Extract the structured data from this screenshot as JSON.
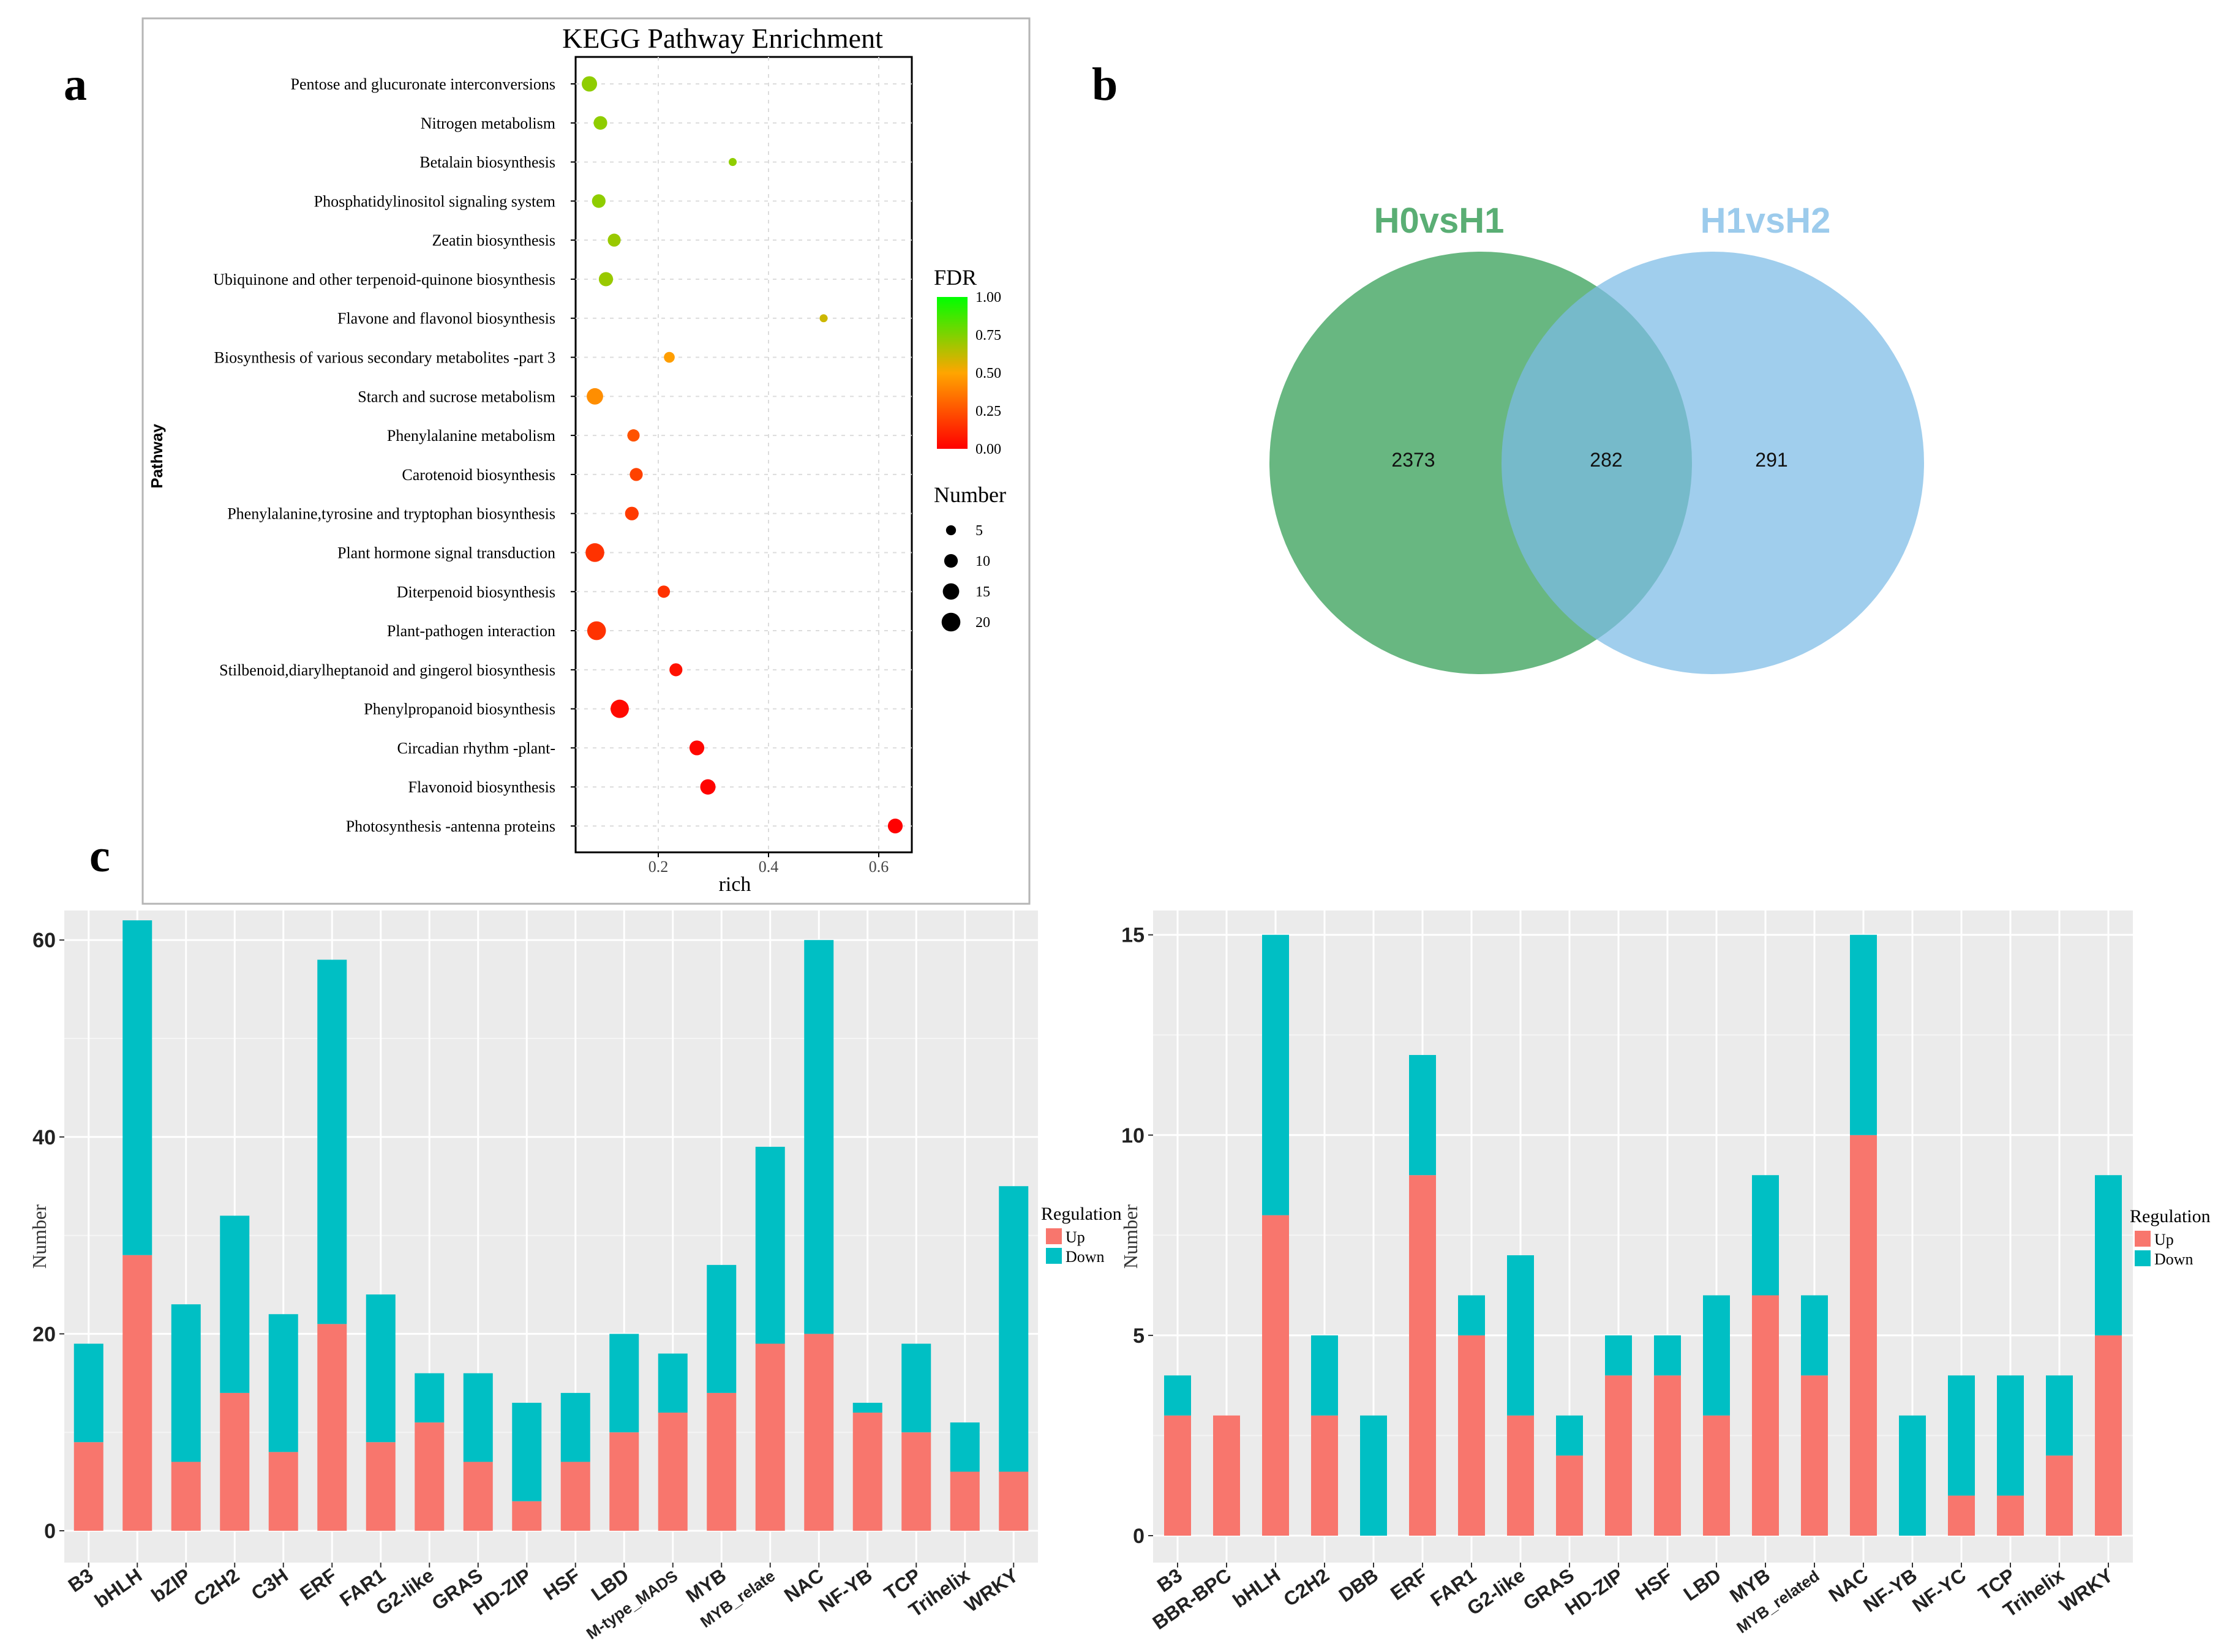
{
  "panels": {
    "a": "a",
    "b": "b",
    "c": "c"
  },
  "colors": {
    "up": "#f8766d",
    "down": "#00bfc4",
    "panel_bg": "#ebebeb",
    "venn_left": "#2e9b50",
    "venn_right": "#7bbbe6",
    "venn_left_label": "#5aae74",
    "venn_right_label": "#9ccbec"
  },
  "chart_data": [
    {
      "type": "scatter",
      "title": "KEGG Pathway Enrichment",
      "xlabel": "rich",
      "ylabel": "Pathway",
      "xlim": [
        0.05,
        0.66
      ],
      "xticks": [
        0.2,
        0.4,
        0.6
      ],
      "xtick_labels": [
        "0.2",
        "0.4",
        "0.6"
      ],
      "categories": [
        "Pentose and glucuronate interconversions",
        "Nitrogen metabolism",
        "Betalain biosynthesis",
        "Phosphatidylinositol signaling system",
        "Zeatin biosynthesis",
        "Ubiquinone and other terpenoid-quinone biosynthesis",
        "Flavone and flavonol biosynthesis",
        "Biosynthesis of various secondary metabolites -part 3",
        "Starch and sucrose metabolism",
        "Phenylalanine metabolism",
        "Carotenoid biosynthesis",
        "Phenylalanine,tyrosine and tryptophan biosynthesis",
        "Plant hormone signal transduction",
        "Diterpenoid biosynthesis",
        "Plant-pathogen interaction",
        "Stilbenoid,diarylheptanoid and gingerol biosynthesis",
        "Phenylpropanoid biosynthesis",
        "Circadian rhythm -plant-",
        "Flavonoid biosynthesis",
        "Photosynthesis -antenna proteins"
      ],
      "rich": [
        0.075,
        0.095,
        0.335,
        0.092,
        0.12,
        0.105,
        0.5,
        0.22,
        0.085,
        0.155,
        0.16,
        0.152,
        0.085,
        0.21,
        0.088,
        0.232,
        0.13,
        0.27,
        0.29,
        0.63
      ],
      "fdr": [
        0.72,
        0.72,
        0.72,
        0.72,
        0.7,
        0.7,
        0.6,
        0.48,
        0.43,
        0.25,
        0.2,
        0.18,
        0.15,
        0.15,
        0.15,
        0.05,
        0.03,
        0.02,
        0.01,
        0.0
      ],
      "number": [
        13,
        10,
        3,
        10,
        9,
        11,
        3,
        6,
        15,
        8,
        9,
        10,
        20,
        8,
        20,
        9,
        19,
        12,
        13,
        12
      ],
      "legend_fdr": {
        "title": "FDR",
        "ticks": [
          "1.00",
          "0.75",
          "0.50",
          "0.25",
          "0.00"
        ]
      },
      "legend_number": {
        "title": "Number",
        "values": [
          5,
          10,
          15,
          20
        ],
        "labels": [
          "5",
          "10",
          "15",
          "20"
        ]
      }
    },
    {
      "type": "venn",
      "sets": [
        "H0vsH1",
        "H1vsH2"
      ],
      "only_left": 2373,
      "overlap": 282,
      "only_right": 291,
      "labels": [
        "2373",
        "282",
        "291"
      ]
    },
    {
      "type": "bar",
      "stacked": true,
      "ylabel": "Number",
      "ylim": [
        0,
        63
      ],
      "yticks": [
        0,
        20,
        40,
        60
      ],
      "ytick_labels": [
        "0",
        "20",
        "40",
        "60"
      ],
      "categories": [
        "B3",
        "bHLH",
        "bZIP",
        "C2H2",
        "C3H",
        "ERF",
        "FAR1",
        "G2-like",
        "GRAS",
        "HD-ZIP",
        "HSF",
        "LBD",
        "M-type_MADS",
        "MYB",
        "MYB_relate",
        "NAC",
        "NF-YB",
        "TCP",
        "Trihelix",
        "WRKY"
      ],
      "series": [
        {
          "name": "Up",
          "values": [
            9,
            28,
            7,
            14,
            8,
            21,
            9,
            11,
            7,
            3,
            7,
            10,
            12,
            14,
            19,
            20,
            12,
            10,
            6,
            6
          ]
        },
        {
          "name": "Down",
          "values": [
            10,
            34,
            16,
            18,
            14,
            37,
            15,
            5,
            9,
            10,
            7,
            10,
            6,
            13,
            20,
            40,
            1,
            9,
            5,
            29
          ]
        }
      ],
      "legend_title": "Regulation",
      "legend_labels": [
        "Up",
        "Down"
      ]
    },
    {
      "type": "bar",
      "stacked": true,
      "ylabel": "Number",
      "ylim": [
        0,
        15.5
      ],
      "yticks": [
        0,
        5,
        10,
        15
      ],
      "ytick_labels": [
        "0",
        "5",
        "10",
        "15"
      ],
      "categories": [
        "B3",
        "BBR-BPC",
        "bHLH",
        "C2H2",
        "DBB",
        "ERF",
        "FAR1",
        "G2-like",
        "GRAS",
        "HD-ZIP",
        "HSF",
        "LBD",
        "MYB",
        "MYB_related",
        "NAC",
        "NF-YB",
        "NF-YC",
        "TCP",
        "Trihelix",
        "WRKY"
      ],
      "series": [
        {
          "name": "Up",
          "values": [
            3,
            3,
            8,
            3,
            0,
            9,
            5,
            3,
            2,
            4,
            4,
            3,
            6,
            4,
            10,
            0,
            1,
            1,
            2,
            5
          ]
        },
        {
          "name": "Down",
          "values": [
            1,
            0,
            7,
            2,
            3,
            3,
            1,
            4,
            1,
            1,
            1,
            3,
            3,
            2,
            5,
            3,
            3,
            3,
            2,
            4
          ]
        }
      ],
      "legend_title": "Regulation",
      "legend_labels": [
        "Up",
        "Down"
      ]
    }
  ]
}
